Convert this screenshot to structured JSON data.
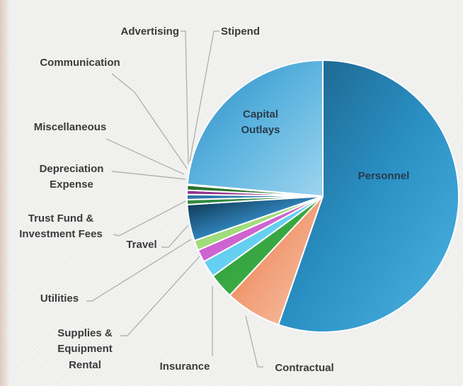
{
  "chart_data": {
    "type": "pie",
    "title": "",
    "slices": [
      {
        "name": "Personnel",
        "value": 55.3,
        "colors": [
          "#1b5e84",
          "#2a8fc3",
          "#4db5e3"
        ]
      },
      {
        "name": "Contractual",
        "value": 6.7,
        "colors": [
          "#e8692e",
          "#f2a07a",
          "#f6c3a8"
        ]
      },
      {
        "name": "Insurance",
        "value": 3.0,
        "colors": [
          "#2b9a3a",
          "#45b54b"
        ]
      },
      {
        "name": "Supplies & Equipment Rental",
        "value": 2.0,
        "colors": [
          "#4ec7ee",
          "#7fd8f4"
        ]
      },
      {
        "name": "Utilities",
        "value": 1.5,
        "colors": [
          "#c34fc9",
          "#d97ad9"
        ]
      },
      {
        "name": "Travel",
        "value": 1.2,
        "colors": [
          "#8fd36a",
          "#b5e58f"
        ]
      },
      {
        "name": "Trust Fund & Investment Fees",
        "value": 4.3,
        "colors": [
          "#0a2b45",
          "#2e7fb4",
          "#5cc0ec"
        ]
      },
      {
        "name": "Depreciation Expense",
        "value": 0.6,
        "colors": [
          "#2a7f3a",
          "#3f9b48"
        ]
      },
      {
        "name": "Miscellaneous",
        "value": 0.6,
        "colors": [
          "#2a6e9c",
          "#3f8fbf"
        ]
      },
      {
        "name": "Communication",
        "value": 0.5,
        "colors": [
          "#8a2c86",
          "#a9489f"
        ]
      },
      {
        "name": "Advertising",
        "value": 0.6,
        "colors": [
          "#246a2a",
          "#3a8a3c"
        ]
      },
      {
        "name": "Stipend",
        "value": 0.1,
        "colors": [
          "#1f5f8d",
          "#2e79aa"
        ]
      },
      {
        "name": "Capital Outlays",
        "value": 23.6,
        "colors": [
          "#2a8bc2",
          "#5db4df",
          "#9ed4ef"
        ]
      }
    ],
    "labels": {
      "personnel": "Personnel",
      "capital_outlays_line1": "Capital",
      "capital_outlays_line2": "Outlays",
      "contractual": "Contractual",
      "insurance": "Insurance",
      "supplies_line1": "Supplies &",
      "supplies_line2": "Equipment",
      "supplies_line3": "Rental",
      "utilities": "Utilities",
      "travel": "Travel",
      "trust_line1": "Trust Fund &",
      "trust_line2": "Investment Fees",
      "depreciation_line1": "Depreciation",
      "depreciation_line2": "Expense",
      "miscellaneous": "Miscellaneous",
      "communication": "Communication",
      "advertising": "Advertising",
      "stipend": "Stipend"
    }
  }
}
